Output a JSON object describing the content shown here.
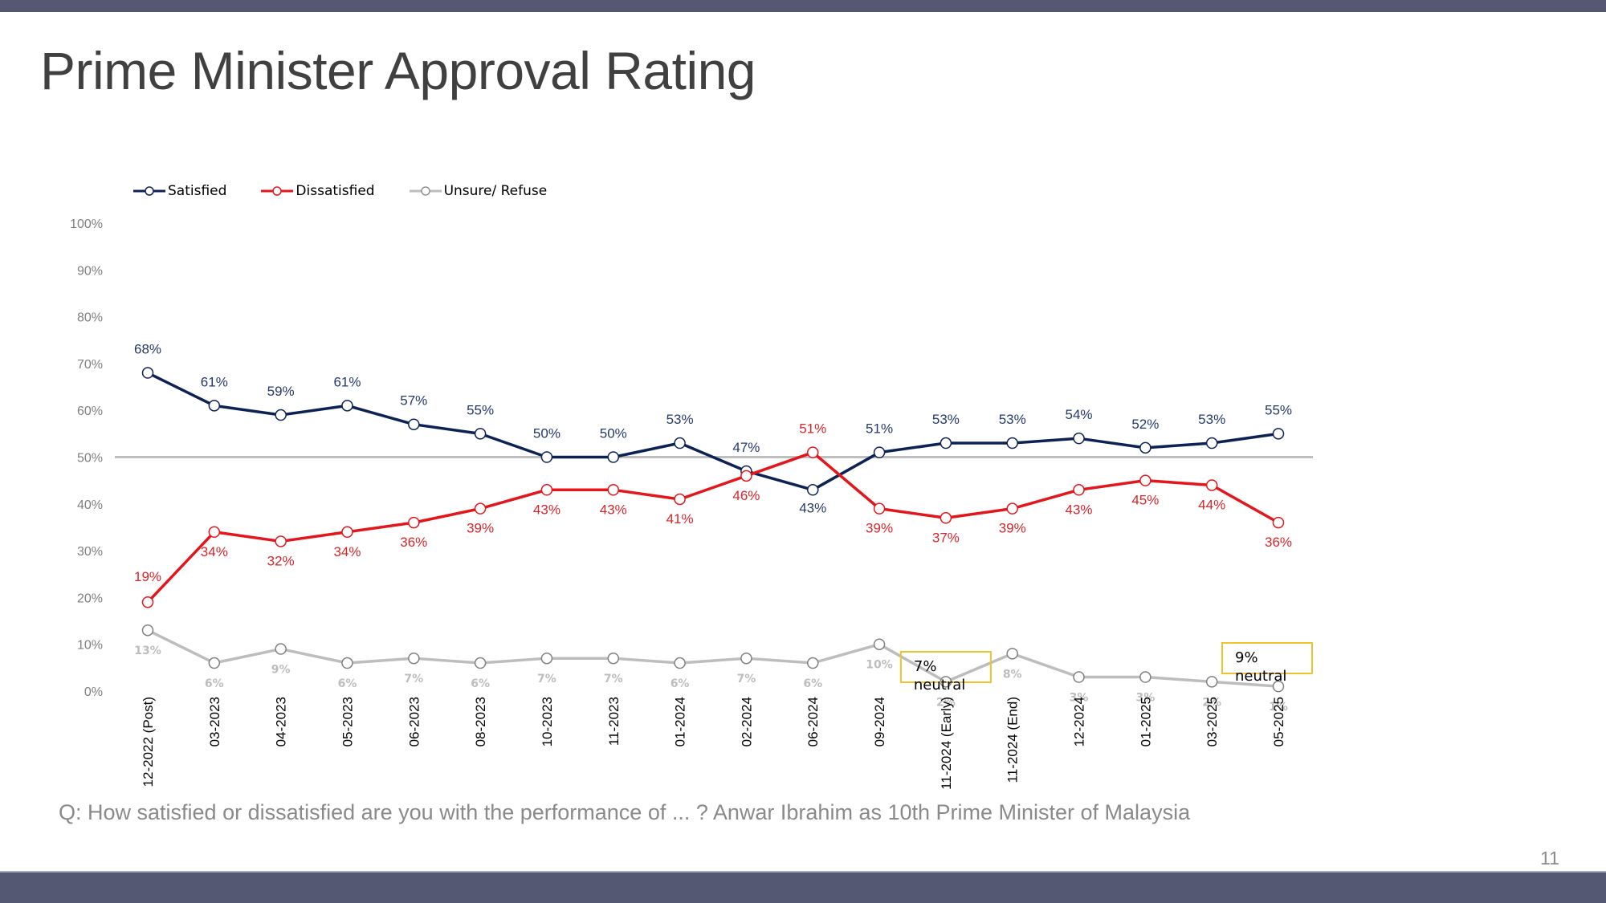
{
  "page": {
    "title": "Prime Minister Approval Rating",
    "question": "Q: How satisfied or dissatisfied are you with the performance of ... ? Anwar Ibrahim as 10th Prime Minister of Malaysia",
    "page_number": "11"
  },
  "colors": {
    "satisfied": "#0d2254",
    "dissatisfied": "#e3161b",
    "unsure": "#bdbdbd",
    "reference_line": "#bfbfbf",
    "annotation_border": "#f2c12e",
    "bar": "#545872"
  },
  "chart_data": {
    "type": "line",
    "title": "Prime Minister Approval Rating",
    "xlabel": "",
    "ylabel": "",
    "ylim": [
      0,
      100
    ],
    "yticks": [
      "0%",
      "10%",
      "20%",
      "30%",
      "40%",
      "50%",
      "60%",
      "70%",
      "80%",
      "90%",
      "100%"
    ],
    "ytick_values": [
      0,
      10,
      20,
      30,
      40,
      50,
      60,
      70,
      80,
      90,
      100
    ],
    "grid": false,
    "reference_line": 50,
    "legend_position": "top-left",
    "categories": [
      "12-2022 (Post)",
      "03-2023",
      "04-2023",
      "05-2023",
      "06-2023",
      "08-2023",
      "10-2023",
      "11-2023",
      "01-2024",
      "02-2024",
      "06-2024",
      "09-2024",
      "11-2024 (Early)",
      "11-2024 (End)",
      "12-2024",
      "01-2025",
      "03-2025",
      "05-2025"
    ],
    "series": [
      {
        "name": "Satisfied",
        "key": "satisfied",
        "values": [
          68,
          61,
          59,
          61,
          57,
          55,
          50,
          50,
          53,
          47,
          43,
          51,
          53,
          53,
          54,
          52,
          53,
          55
        ],
        "labels": [
          "68%",
          "61%",
          "59%",
          "61%",
          "57%",
          "55%",
          "50%",
          "50%",
          "53%",
          "47%",
          "43%",
          "51%",
          "53%",
          "53%",
          "54%",
          "52%",
          "53%",
          "55%"
        ]
      },
      {
        "name": "Dissatisfied",
        "key": "dissatisfied",
        "values": [
          19,
          34,
          32,
          34,
          36,
          39,
          43,
          43,
          41,
          46,
          51,
          39,
          37,
          39,
          43,
          45,
          44,
          36
        ],
        "labels": [
          "19%",
          "34%",
          "32%",
          "34%",
          "36%",
          "39%",
          "43%",
          "43%",
          "41%",
          "46%",
          "51%",
          "39%",
          "37%",
          "39%",
          "43%",
          "45%",
          "44%",
          "36%"
        ]
      },
      {
        "name": "Unsure/ Refuse",
        "key": "unsure",
        "values": [
          13,
          6,
          9,
          6,
          7,
          6,
          7,
          7,
          6,
          7,
          6,
          10,
          2,
          8,
          3,
          3,
          2,
          1
        ],
        "labels": [
          "13%",
          "6%",
          "9%",
          "6%",
          "7%",
          "6%",
          "7%",
          "7%",
          "6%",
          "7%",
          "6%",
          "10%",
          "2%",
          "8%",
          "3%",
          "3%",
          "2%",
          "1%"
        ]
      }
    ],
    "annotations": [
      {
        "category": "11-2024 (Early)",
        "text_line1": "7%",
        "text_line2": "neutral"
      },
      {
        "category": "05-2025",
        "text_line1": "9%",
        "text_line2": "neutral"
      }
    ]
  }
}
